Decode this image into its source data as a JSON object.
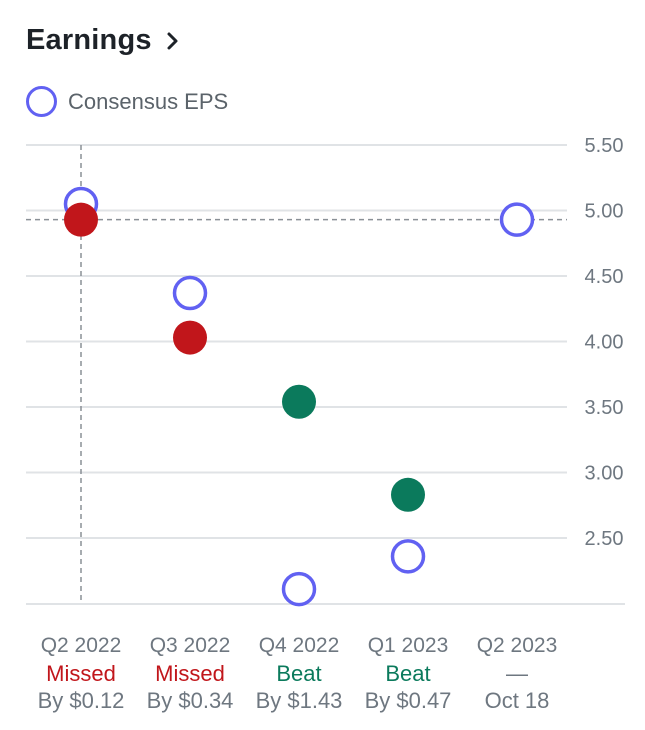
{
  "header": {
    "title": "Earnings"
  },
  "legend": {
    "consensus_label": "Consensus EPS"
  },
  "colors": {
    "consensus": "#6161f2",
    "missed": "#c1161b",
    "beat": "#0b7a5c",
    "neutral": "#6e7780",
    "grid": "#e0e3e6"
  },
  "chart_data": {
    "type": "scatter",
    "y_ticks": [
      "5.50",
      "5.00",
      "4.50",
      "4.00",
      "3.50",
      "3.00",
      "2.50"
    ],
    "ylim": [
      1.97,
      5.5
    ],
    "crosshair": {
      "category": "Q2 2022",
      "y": 4.93
    },
    "categories": [
      "Q2 2022",
      "Q3 2022",
      "Q4 2022",
      "Q1 2023",
      "Q2 2023"
    ],
    "series": [
      {
        "name": "Consensus EPS",
        "values": [
          5.05,
          4.37,
          2.11,
          2.36,
          4.93
        ]
      },
      {
        "values": [
          4.93,
          4.03,
          3.54,
          2.83,
          null
        ]
      }
    ],
    "quarters": [
      {
        "label": "Q2 2022",
        "status": "Missed",
        "status_type": "missed",
        "detail": "By $0.12"
      },
      {
        "label": "Q3 2022",
        "status": "Missed",
        "status_type": "missed",
        "detail": "By $0.34"
      },
      {
        "label": "Q4 2022",
        "status": "Beat",
        "status_type": "beat",
        "detail": "By $1.43"
      },
      {
        "label": "Q1 2023",
        "status": "Beat",
        "status_type": "beat",
        "detail": "By $0.47"
      },
      {
        "label": "Q2 2023",
        "status": "—",
        "status_type": "pending",
        "detail": "Oct 18"
      }
    ]
  }
}
